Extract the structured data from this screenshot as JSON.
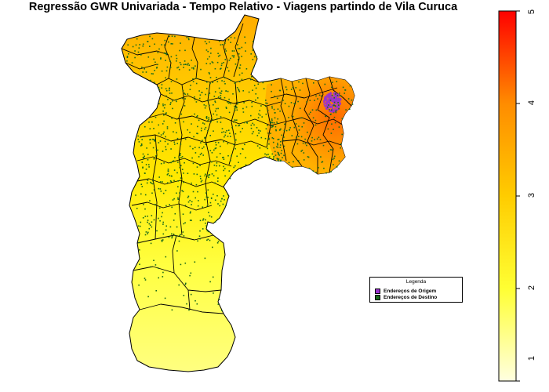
{
  "title": "Regressão GWR Univariada - Tempo Relativo - Viagens partindo de Vila Curuca",
  "legend": {
    "title": "Legenda",
    "items": [
      {
        "label": "Endereços de Origem",
        "color": "#9933cc"
      },
      {
        "label": "Endereços de Destino",
        "color": "#1a6b1a"
      }
    ]
  },
  "colorbar": {
    "min": 1,
    "max": 5,
    "ticks": [
      "1",
      "2",
      "3",
      "4",
      "5"
    ],
    "colors": [
      "#ffffe0",
      "#ffff33",
      "#ffcc00",
      "#ff9900",
      "#ff5500",
      "#ff0000"
    ]
  },
  "map": {
    "fill_low": "#ffff66",
    "fill_high": "#ff7a00",
    "origin_color": "#9933cc",
    "destination_color": "#1a6b1a",
    "border_color": "#000000"
  }
}
